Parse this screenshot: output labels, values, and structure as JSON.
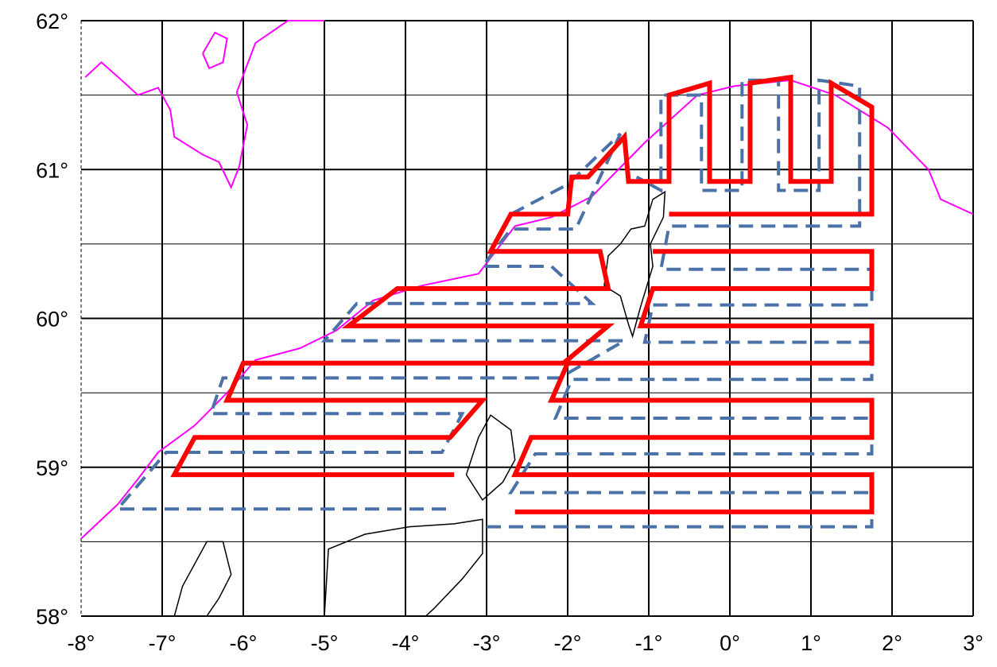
{
  "map": {
    "lon_range": [
      -8,
      3
    ],
    "lat_range": [
      58,
      62
    ],
    "x_tick_values": [
      -8,
      -7,
      -6,
      -5,
      -4,
      -3,
      -2,
      -1,
      0,
      1,
      2,
      3
    ],
    "x_tick_labels": [
      "-8°",
      "-7°",
      "-6°",
      "-5°",
      "-4°",
      "-3°",
      "-2°",
      "-1°",
      "0°",
      "1°",
      "2°",
      "3°"
    ],
    "y_tick_values": [
      62,
      61,
      60,
      59,
      58
    ],
    "y_tick_labels": [
      "62°",
      "61°",
      "60°",
      "59°",
      "58°"
    ],
    "grid_lat_minor": [
      61.5,
      60.5,
      59.5,
      58.5
    ],
    "colors": {
      "grid": "#000000",
      "coast": "#000000",
      "shelf_contour": "#ff00ff",
      "survey_track_solid": "#ff0000",
      "survey_track_dashed": "#4a72a8"
    },
    "shelf_contour": [
      [
        -7.95,
        61.62
      ],
      [
        -7.75,
        61.72
      ],
      [
        -7.5,
        61.6
      ],
      [
        -7.3,
        61.5
      ],
      [
        -7.05,
        61.55
      ],
      [
        -6.9,
        61.4
      ],
      [
        -6.85,
        61.22
      ],
      [
        -6.5,
        61.1
      ],
      [
        -6.3,
        61.05
      ],
      [
        -6.15,
        60.88
      ],
      [
        -6.05,
        61.02
      ],
      [
        -5.95,
        61.3
      ],
      [
        -6.08,
        61.52
      ],
      [
        -5.85,
        61.85
      ],
      [
        -5.45,
        62.0
      ],
      [
        -5.0,
        62.0
      ]
    ],
    "shelf_contour_south": [
      [
        -8.0,
        58.52
      ],
      [
        -7.55,
        58.75
      ],
      [
        -7.3,
        58.92
      ],
      [
        -7.05,
        59.1
      ],
      [
        -6.6,
        59.28
      ],
      [
        -6.2,
        59.5
      ],
      [
        -5.85,
        59.72
      ],
      [
        -5.3,
        59.8
      ],
      [
        -4.85,
        59.92
      ],
      [
        -4.4,
        60.12
      ],
      [
        -3.8,
        60.22
      ],
      [
        -3.1,
        60.3
      ],
      [
        -2.65,
        60.62
      ],
      [
        -2.2,
        60.68
      ],
      [
        -1.7,
        60.82
      ],
      [
        -1.05,
        61.18
      ],
      [
        -0.4,
        61.5
      ],
      [
        0.05,
        61.56
      ],
      [
        0.75,
        61.6
      ],
      [
        1.3,
        61.5
      ],
      [
        1.95,
        61.28
      ],
      [
        2.45,
        61.0
      ],
      [
        2.6,
        60.8
      ],
      [
        3.0,
        60.7
      ]
    ],
    "shelf_contour_island": [
      [
        -6.5,
        61.78
      ],
      [
        -6.35,
        61.92
      ],
      [
        -6.2,
        61.88
      ],
      [
        -6.25,
        61.72
      ],
      [
        -6.42,
        61.68
      ],
      [
        -6.5,
        61.78
      ]
    ],
    "survey_track_solid": [
      [
        -2.65,
        58.7
      ],
      [
        1.75,
        58.7
      ],
      [
        1.75,
        58.95
      ],
      [
        -2.65,
        58.95
      ],
      [
        -2.45,
        59.2
      ],
      [
        1.75,
        59.2
      ],
      [
        1.75,
        59.45
      ],
      [
        -2.2,
        59.45
      ],
      [
        -2.0,
        59.7
      ],
      [
        1.75,
        59.7
      ],
      [
        1.75,
        59.95
      ],
      [
        -1.1,
        59.95
      ],
      [
        -0.95,
        60.2
      ],
      [
        1.75,
        60.2
      ],
      [
        1.75,
        60.45
      ],
      [
        -0.95,
        60.45
      ]
    ],
    "survey_track_solid_west": [
      [
        -3.4,
        58.95
      ],
      [
        -6.85,
        58.95
      ],
      [
        -6.6,
        59.2
      ],
      [
        -3.45,
        59.2
      ],
      [
        -3.05,
        59.45
      ],
      [
        -6.2,
        59.45
      ],
      [
        -6.0,
        59.7
      ],
      [
        -2.05,
        59.7
      ],
      [
        -1.5,
        59.95
      ],
      [
        -4.7,
        59.95
      ],
      [
        -4.1,
        60.2
      ],
      [
        -1.5,
        60.2
      ],
      [
        -1.6,
        60.45
      ],
      [
        -2.95,
        60.45
      ],
      [
        -2.7,
        60.7
      ],
      [
        -2.0,
        60.7
      ],
      [
        -1.95,
        60.95
      ],
      [
        -1.75,
        60.95
      ],
      [
        -1.3,
        61.22
      ],
      [
        -1.25,
        60.92
      ],
      [
        -0.75,
        60.92
      ],
      [
        -0.75,
        61.5
      ],
      [
        -0.25,
        61.58
      ],
      [
        -0.25,
        60.92
      ],
      [
        0.25,
        60.92
      ],
      [
        0.25,
        61.58
      ],
      [
        0.75,
        61.62
      ],
      [
        0.75,
        60.92
      ],
      [
        1.25,
        60.92
      ],
      [
        1.25,
        61.58
      ],
      [
        1.75,
        61.42
      ],
      [
        1.75,
        60.7
      ],
      [
        -0.75,
        60.7
      ]
    ],
    "survey_track_dashed": [
      [
        -3.0,
        58.6
      ],
      [
        1.75,
        58.6
      ],
      [
        1.75,
        58.83
      ],
      [
        -2.7,
        58.83
      ],
      [
        -2.4,
        59.09
      ],
      [
        1.75,
        59.09
      ],
      [
        1.75,
        59.33
      ],
      [
        -2.15,
        59.33
      ],
      [
        -1.95,
        59.59
      ],
      [
        1.75,
        59.59
      ],
      [
        1.75,
        59.84
      ],
      [
        -1.05,
        59.84
      ],
      [
        -0.95,
        60.09
      ],
      [
        1.75,
        60.09
      ],
      [
        1.75,
        60.33
      ],
      [
        -0.85,
        60.33
      ],
      [
        -0.75,
        60.62
      ],
      [
        1.6,
        60.62
      ],
      [
        1.6,
        61.56
      ],
      [
        1.1,
        61.6
      ],
      [
        1.1,
        60.86
      ],
      [
        0.6,
        60.86
      ],
      [
        0.6,
        61.6
      ],
      [
        0.15,
        61.6
      ],
      [
        0.15,
        60.86
      ],
      [
        -0.35,
        60.86
      ],
      [
        -0.35,
        61.5
      ],
      [
        -0.85,
        61.5
      ],
      [
        -0.85,
        60.86
      ],
      [
        -1.15,
        60.95
      ]
    ],
    "survey_track_dashed_west": [
      [
        -3.5,
        58.72
      ],
      [
        -7.55,
        58.72
      ],
      [
        -6.95,
        59.1
      ],
      [
        -3.55,
        59.1
      ],
      [
        -3.3,
        59.36
      ],
      [
        -6.4,
        59.36
      ],
      [
        -6.25,
        59.6
      ],
      [
        -2.1,
        59.6
      ],
      [
        -1.3,
        59.85
      ],
      [
        -5.0,
        59.85
      ],
      [
        -4.6,
        60.1
      ],
      [
        -1.7,
        60.1
      ],
      [
        -2.2,
        60.35
      ],
      [
        -3.05,
        60.35
      ],
      [
        -2.7,
        60.6
      ],
      [
        -1.9,
        60.6
      ],
      [
        -1.35,
        61.24
      ],
      [
        -2.0,
        60.9
      ],
      [
        -2.7,
        60.7
      ]
    ],
    "coast_shetland": [
      [
        -1.55,
        60.22
      ],
      [
        -1.35,
        60.15
      ],
      [
        -1.25,
        59.96
      ],
      [
        -1.2,
        59.88
      ],
      [
        -1.1,
        60.08
      ],
      [
        -0.95,
        60.35
      ],
      [
        -0.98,
        60.5
      ],
      [
        -0.82,
        60.68
      ],
      [
        -0.8,
        60.85
      ],
      [
        -0.95,
        60.8
      ],
      [
        -1.05,
        60.62
      ],
      [
        -1.22,
        60.6
      ],
      [
        -1.35,
        60.5
      ],
      [
        -1.5,
        60.42
      ],
      [
        -1.55,
        60.22
      ]
    ],
    "coast_orkney": [
      [
        -3.25,
        58.95
      ],
      [
        -3.1,
        59.2
      ],
      [
        -2.95,
        59.35
      ],
      [
        -2.7,
        59.25
      ],
      [
        -2.65,
        59.05
      ],
      [
        -2.8,
        58.9
      ],
      [
        -3.05,
        58.78
      ],
      [
        -3.25,
        58.95
      ]
    ],
    "coast_scotland": [
      [
        -5.0,
        58.0
      ],
      [
        -4.95,
        58.45
      ],
      [
        -4.5,
        58.55
      ],
      [
        -3.95,
        58.6
      ],
      [
        -3.4,
        58.62
      ],
      [
        -3.05,
        58.65
      ],
      [
        -3.05,
        58.42
      ],
      [
        -3.3,
        58.25
      ],
      [
        -3.65,
        58.05
      ],
      [
        -3.75,
        58.0
      ]
    ],
    "coast_lewis": [
      [
        -6.85,
        58.0
      ],
      [
        -6.75,
        58.2
      ],
      [
        -6.45,
        58.5
      ],
      [
        -6.25,
        58.5
      ],
      [
        -6.15,
        58.28
      ],
      [
        -6.3,
        58.12
      ],
      [
        -6.45,
        58.0
      ]
    ]
  }
}
